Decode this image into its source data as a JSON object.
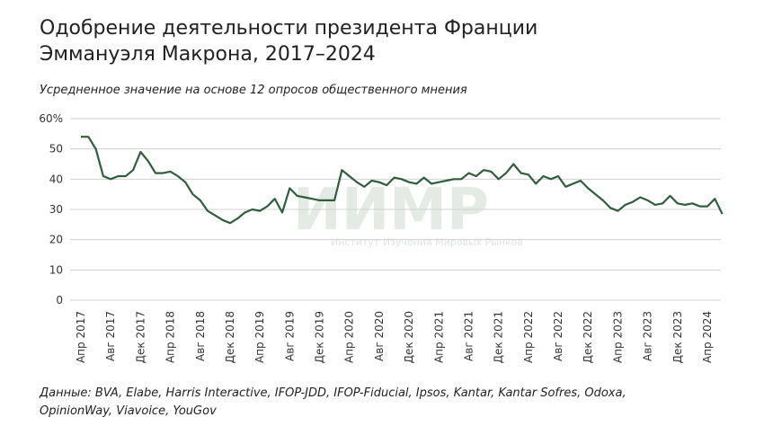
{
  "chart_data": {
    "type": "line",
    "title_line1": "Одобрение деятельности президента Франции",
    "title_line2": "Эммануэля Макрона, 2017–2024",
    "subtitle": "Усредненное значение на основе 12 опросов общественного мнения",
    "source": "Данные: BVA, Elabe, Harris Interactive, IFOP-JDD, IFOP-Fiducial, Ipsos, Kantar, Kantar Sofres, Odoxa, OpinionWay, Viavoice, YouGov",
    "watermark": "ИИМР",
    "watermark_subtitle": "Институт Изучения Мировых Рынков",
    "categories": [
      "Апр 2017",
      null,
      null,
      null,
      "Авг 2017",
      null,
      null,
      null,
      "Дек 2017",
      null,
      null,
      null,
      "Апр 2018",
      null,
      null,
      null,
      "Авг 2018",
      null,
      null,
      null,
      "Дек 2018",
      null,
      null,
      null,
      "Апр 2019",
      null,
      null,
      null,
      "Авг 2019",
      null,
      null,
      null,
      "Дек 2019",
      null,
      null,
      null,
      "Апр 2020",
      null,
      null,
      null,
      "Авг 2020",
      null,
      null,
      null,
      "Дек 2020",
      null,
      null,
      null,
      "Апр 2021",
      null,
      null,
      null,
      "Авг 2021",
      null,
      null,
      null,
      "Дек 2021",
      null,
      null,
      null,
      "Апр 2022",
      null,
      null,
      null,
      "Авг 2022",
      null,
      null,
      null,
      "Дек 2022",
      null,
      null,
      null,
      "Апр 2023",
      null,
      null,
      null,
      "Авг 2023",
      null,
      null,
      null,
      "Дек 2023",
      null,
      null,
      null,
      "Апр 2024",
      null,
      null
    ],
    "values": [
      54,
      54,
      50,
      41,
      40,
      41,
      41,
      43,
      49,
      46,
      42,
      42,
      42.5,
      41,
      39,
      35,
      33,
      29.5,
      28,
      26.5,
      25.5,
      27,
      29,
      30,
      29.5,
      31,
      33.5,
      29,
      37,
      34.5,
      34,
      33.5,
      33,
      33,
      33,
      43,
      41,
      39,
      37.5,
      39.5,
      39,
      38,
      40.5,
      40,
      39,
      38.5,
      40.5,
      38.5,
      39,
      39.5,
      40,
      40,
      42,
      41,
      43,
      42.5,
      40,
      42,
      45,
      42,
      41.5,
      38.5,
      41,
      40,
      41,
      37.5,
      38.5,
      39.5,
      37,
      35,
      33,
      30.5,
      29.5,
      31.5,
      32.5,
      34,
      33,
      31.5,
      32,
      34.5,
      32,
      31.5,
      32,
      31,
      31,
      33.5,
      28.5
    ],
    "color": "#2f5e3d",
    "ylim": [
      0,
      60
    ],
    "yticks": [
      0,
      10,
      20,
      30,
      40,
      50,
      {
        "value": 60,
        "label": "60%"
      }
    ],
    "grid": true
  }
}
